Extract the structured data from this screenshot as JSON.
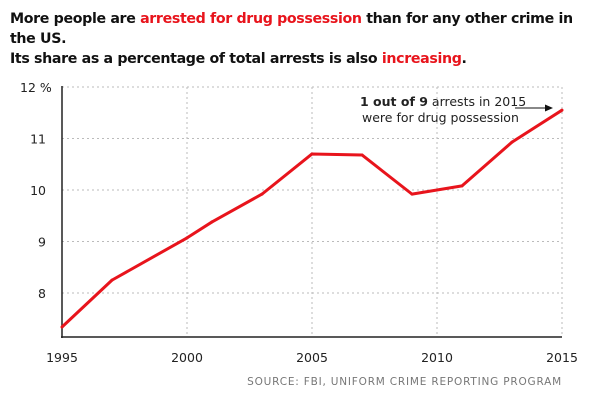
{
  "title": {
    "line1": [
      {
        "text": "More people are ",
        "highlight": false
      },
      {
        "text": "arrested for drug possession",
        "highlight": true
      },
      {
        "text": " than for any other crime in the US.",
        "highlight": false
      }
    ],
    "line2": [
      {
        "text": "Its share as a percentage of total arrests is also ",
        "highlight": false
      },
      {
        "text": "increasing",
        "highlight": true
      },
      {
        "text": ".",
        "highlight": false
      }
    ]
  },
  "source": "SOURCE: FBI, UNIFORM CRIME REPORTING PROGRAM",
  "colors": {
    "line": "#e8141c",
    "highlight": "#e8141c",
    "text": "#111111",
    "grid": "#bbbbbb"
  },
  "chart_data": {
    "type": "line",
    "xlabel": "",
    "ylabel": "",
    "xlim": [
      1995,
      2015
    ],
    "ylim": [
      7.15,
      12
    ],
    "x_ticks": [
      1995,
      2000,
      2005,
      2010,
      2015
    ],
    "x_tick_labels": [
      "1995",
      "2000",
      "2005",
      "2010",
      "2015"
    ],
    "y_ticks": [
      8,
      9,
      10,
      11,
      12
    ],
    "y_tick_labels": [
      "8",
      "9",
      "10",
      "11",
      "12 %"
    ],
    "grid": true,
    "x": [
      1995,
      1997,
      2000,
      2001,
      2003,
      2005,
      2007,
      2009,
      2011,
      2013,
      2015
    ],
    "values": [
      7.34,
      8.25,
      9.07,
      9.38,
      9.92,
      10.7,
      10.68,
      9.92,
      10.08,
      10.93,
      11.55
    ],
    "annotation": {
      "bold": "1 out of 9",
      "rest": " arrests in 2015",
      "line2": "were for drug possession",
      "points_to": 2015
    }
  }
}
